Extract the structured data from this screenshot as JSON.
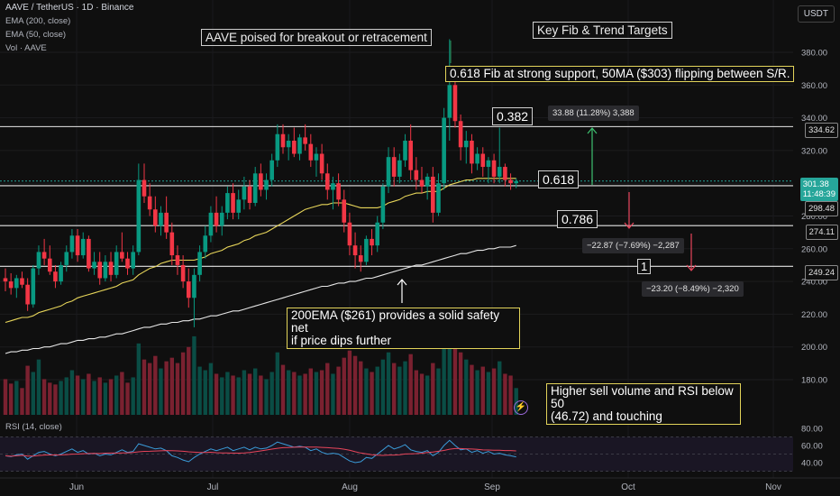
{
  "header": {
    "symbol_line": "AAVE / TetherUS · 1D · Binance",
    "ema200_label": "EMA (200, close)",
    "ema50_label": "EMA (50, close)",
    "volume_label": "Vol · AAVE",
    "currency_button": "USDT",
    "rsi_label": "RSI (14, close)"
  },
  "annotations": {
    "title_left": "AAVE poised for breakout or retracement",
    "title_right": "Key Fib & Trend Targets",
    "fib_note": "0.618 Fib at strong support, 50MA ($303) flipping between S/R.",
    "ema_note_line1": "200EMA ($261) provides a solid safety net",
    "ema_note_line2": "if price dips further",
    "volume_note_line1": "Higher sell volume and RSI below 50",
    "volume_note_line2": "(46.72) and touching",
    "fib_0382": "0.382",
    "fib_0618": "0.618",
    "fib_0786": "0.786",
    "fib_1": "1",
    "measure_up": "33.88 (11.28%) 3,388",
    "measure_down1": "−22.87 (−7.69%) −2,287",
    "measure_down2": "−23.20 (−8.49%) −2,320"
  },
  "price_tags": {
    "fib_0382": "334.62",
    "current_price": "301.38",
    "countdown": "11:48:39",
    "fib_0618": "298.48",
    "fib_0786": "274.11",
    "fib_1": "249.24"
  },
  "colors": {
    "background": "#0f0f0f",
    "up": "#089981",
    "down": "#f23645",
    "ema50": "#e8d65a",
    "ema200": "#e6e6e6",
    "rsi": "#3a9bd8",
    "rsi_ma": "#e8455b",
    "accent_green": "#26a69a"
  },
  "chart_data": {
    "type": "candlestick",
    "price_axis_ticks": [
      380,
      360,
      340,
      320,
      300,
      280,
      260,
      240,
      220,
      200,
      180
    ],
    "rsi_axis_ticks": [
      80,
      60,
      40
    ],
    "time_axis_labels": [
      "Jun",
      "Jul",
      "Aug",
      "Sep",
      "Oct",
      "Nov"
    ],
    "fib_levels": [
      {
        "ratio": "0.382",
        "price": 334.62
      },
      {
        "ratio": "0.618",
        "price": 298.48
      },
      {
        "ratio": "0.786",
        "price": 274.11
      },
      {
        "ratio": "1",
        "price": 249.24
      }
    ],
    "current_price": 301.38,
    "candles": [
      [
        242,
        248,
        234,
        240
      ],
      [
        240,
        245,
        232,
        236
      ],
      [
        236,
        244,
        230,
        242
      ],
      [
        242,
        246,
        236,
        238
      ],
      [
        238,
        242,
        222,
        226
      ],
      [
        226,
        250,
        224,
        248
      ],
      [
        248,
        262,
        244,
        258
      ],
      [
        258,
        266,
        250,
        254
      ],
      [
        254,
        262,
        244,
        246
      ],
      [
        246,
        250,
        236,
        240
      ],
      [
        240,
        252,
        238,
        250
      ],
      [
        250,
        262,
        246,
        258
      ],
      [
        258,
        272,
        254,
        268
      ],
      [
        268,
        272,
        252,
        256
      ],
      [
        256,
        270,
        254,
        266
      ],
      [
        266,
        268,
        246,
        248
      ],
      [
        248,
        258,
        244,
        252
      ],
      [
        252,
        258,
        238,
        242
      ],
      [
        242,
        256,
        240,
        252
      ],
      [
        252,
        258,
        240,
        244
      ],
      [
        244,
        262,
        242,
        258
      ],
      [
        258,
        270,
        252,
        254
      ],
      [
        254,
        258,
        244,
        248
      ],
      [
        248,
        262,
        244,
        258
      ],
      [
        258,
        312,
        256,
        302
      ],
      [
        302,
        312,
        288,
        292
      ],
      [
        292,
        300,
        280,
        284
      ],
      [
        284,
        292,
        270,
        274
      ],
      [
        274,
        286,
        268,
        282
      ],
      [
        282,
        292,
        266,
        270
      ],
      [
        270,
        276,
        250,
        256
      ],
      [
        256,
        262,
        244,
        250
      ],
      [
        250,
        256,
        236,
        240
      ],
      [
        240,
        248,
        224,
        230
      ],
      [
        230,
        248,
        212,
        244
      ],
      [
        244,
        262,
        240,
        258
      ],
      [
        258,
        274,
        254,
        268
      ],
      [
        268,
        286,
        264,
        282
      ],
      [
        282,
        292,
        270,
        274
      ],
      [
        274,
        286,
        268,
        282
      ],
      [
        282,
        298,
        278,
        294
      ],
      [
        294,
        300,
        278,
        282
      ],
      [
        282,
        296,
        278,
        290
      ],
      [
        290,
        304,
        284,
        298
      ],
      [
        298,
        302,
        284,
        288
      ],
      [
        288,
        310,
        286,
        306
      ],
      [
        306,
        312,
        292,
        296
      ],
      [
        296,
        306,
        290,
        302
      ],
      [
        302,
        318,
        298,
        314
      ],
      [
        314,
        336,
        310,
        330
      ],
      [
        330,
        336,
        318,
        322
      ],
      [
        322,
        330,
        314,
        326
      ],
      [
        326,
        334,
        316,
        318
      ],
      [
        318,
        330,
        314,
        328
      ],
      [
        328,
        336,
        320,
        324
      ],
      [
        324,
        330,
        310,
        314
      ],
      [
        314,
        322,
        304,
        318
      ],
      [
        318,
        324,
        302,
        306
      ],
      [
        306,
        312,
        290,
        296
      ],
      [
        296,
        304,
        284,
        300
      ],
      [
        300,
        306,
        286,
        290
      ],
      [
        290,
        296,
        270,
        276
      ],
      [
        276,
        282,
        256,
        262
      ],
      [
        262,
        270,
        248,
        256
      ],
      [
        256,
        262,
        246,
        252
      ],
      [
        252,
        268,
        250,
        266
      ],
      [
        266,
        272,
        256,
        262
      ],
      [
        262,
        280,
        258,
        276
      ],
      [
        276,
        300,
        272,
        298
      ],
      [
        298,
        322,
        294,
        316
      ],
      [
        316,
        322,
        298,
        304
      ],
      [
        304,
        318,
        300,
        314
      ],
      [
        314,
        330,
        310,
        326
      ],
      [
        326,
        336,
        302,
        308
      ],
      [
        308,
        316,
        296,
        302
      ],
      [
        302,
        310,
        294,
        298
      ],
      [
        298,
        306,
        290,
        304
      ],
      [
        304,
        310,
        276,
        282
      ],
      [
        282,
        306,
        280,
        300
      ],
      [
        300,
        346,
        296,
        340
      ],
      [
        340,
        388,
        326,
        360
      ],
      [
        360,
        362,
        334,
        338
      ],
      [
        338,
        342,
        314,
        322
      ],
      [
        322,
        332,
        312,
        326
      ],
      [
        326,
        330,
        306,
        312
      ],
      [
        312,
        322,
        308,
        318
      ],
      [
        318,
        322,
        304,
        310
      ],
      [
        310,
        316,
        300,
        314
      ],
      [
        314,
        318,
        300,
        304
      ],
      [
        304,
        334,
        300,
        310
      ],
      [
        310,
        312,
        298,
        302
      ],
      [
        302,
        306,
        296,
        300
      ],
      [
        300,
        303,
        297,
        301.38
      ]
    ],
    "volumes": [
      40,
      35,
      38,
      30,
      55,
      48,
      62,
      40,
      36,
      34,
      38,
      42,
      50,
      44,
      40,
      46,
      38,
      42,
      36,
      40,
      44,
      48,
      36,
      42,
      80,
      62,
      58,
      66,
      52,
      60,
      64,
      58,
      70,
      76,
      88,
      54,
      50,
      58,
      46,
      42,
      48,
      44,
      42,
      50,
      46,
      52,
      44,
      40,
      48,
      70,
      56,
      50,
      48,
      44,
      46,
      52,
      48,
      50,
      58,
      46,
      54,
      64,
      72,
      66,
      60,
      52,
      48,
      54,
      62,
      70,
      58,
      54,
      60,
      68,
      50,
      46,
      44,
      58,
      52,
      84,
      96,
      78,
      70,
      62,
      56,
      50,
      54,
      48,
      52,
      60,
      46,
      44,
      30
    ],
    "rsi_values": [
      48,
      47,
      49,
      50,
      44,
      48,
      52,
      53,
      50,
      48,
      50,
      53,
      56,
      52,
      54,
      50,
      51,
      48,
      50,
      49,
      52,
      55,
      52,
      53,
      62,
      60,
      58,
      56,
      57,
      54,
      48,
      46,
      43,
      41,
      46,
      50,
      53,
      56,
      54,
      56,
      58,
      54,
      56,
      58,
      55,
      58,
      56,
      57,
      60,
      64,
      62,
      60,
      58,
      59,
      58,
      54,
      56,
      52,
      50,
      51,
      50,
      46,
      42,
      40,
      41,
      46,
      45,
      50,
      55,
      60,
      56,
      58,
      61,
      55,
      53,
      52,
      54,
      48,
      52,
      60,
      66,
      60,
      55,
      56,
      52,
      54,
      51,
      53,
      50,
      51,
      49,
      48,
      46.72
    ],
    "ema50_values": [
      215,
      216,
      217,
      218,
      218,
      219,
      221,
      222,
      223,
      224,
      225,
      227,
      228,
      230,
      231,
      232,
      233,
      234,
      235,
      236,
      237,
      239,
      240,
      241,
      244,
      246,
      248,
      249,
      251,
      252,
      253,
      253,
      253,
      253,
      253,
      254,
      255,
      257,
      258,
      259,
      261,
      262,
      263,
      265,
      266,
      268,
      269,
      270,
      272,
      274,
      276,
      278,
      280,
      282,
      284,
      285,
      286,
      287,
      287,
      288,
      288,
      288,
      287,
      286,
      285,
      285,
      285,
      285,
      286,
      288,
      289,
      290,
      292,
      293,
      294,
      294,
      295,
      295,
      295,
      297,
      299,
      300,
      301,
      302,
      302,
      303,
      303,
      303,
      303,
      303,
      303,
      303,
      303
    ],
    "ema200_values": [
      196,
      197,
      197,
      198,
      198,
      199,
      199,
      200,
      200,
      201,
      202,
      202,
      203,
      204,
      204,
      205,
      205,
      206,
      206,
      207,
      208,
      208,
      209,
      210,
      211,
      212,
      212,
      213,
      214,
      214,
      215,
      215,
      216,
      216,
      217,
      217,
      218,
      219,
      219,
      220,
      221,
      222,
      222,
      223,
      224,
      225,
      226,
      227,
      228,
      229,
      230,
      231,
      232,
      233,
      234,
      235,
      236,
      237,
      237,
      238,
      239,
      239,
      240,
      240,
      241,
      242,
      242,
      243,
      244,
      245,
      246,
      247,
      248,
      249,
      250,
      250,
      251,
      252,
      253,
      254,
      255,
      256,
      257,
      257,
      258,
      259,
      259,
      260,
      260,
      261,
      261,
      261,
      262
    ]
  }
}
